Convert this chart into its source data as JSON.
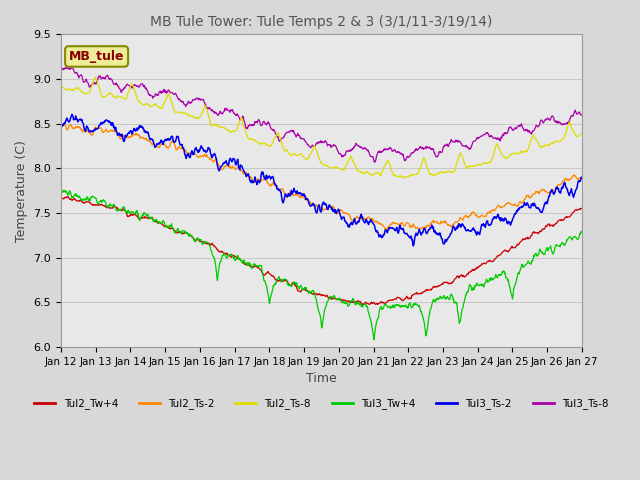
{
  "title": "MB Tule Tower: Tule Temps 2 & 3 (3/1/11-3/19/14)",
  "xlabel": "Time",
  "ylabel": "Temperature (C)",
  "ylim": [
    6.0,
    9.5
  ],
  "yticks": [
    6.0,
    6.5,
    7.0,
    7.5,
    8.0,
    8.5,
    9.0,
    9.5
  ],
  "xtick_labels": [
    "Jan 12",
    "Jan 13",
    "Jan 14",
    "Jan 15",
    "Jan 16",
    "Jan 17",
    "Jan 18",
    "Jan 19",
    "Jan 20",
    "Jan 21",
    "Jan 22",
    "Jan 23",
    "Jan 24",
    "Jan 25",
    "Jan 26",
    "Jan 27"
  ],
  "legend_label": "MB_tule",
  "series_colors": {
    "Tul2_Tw+4": "#cc0000",
    "Tul2_Ts-2": "#ff8800",
    "Tul2_Ts-8": "#dddd00",
    "Tul3_Tw+4": "#00cc00",
    "Tul3_Ts-2": "#0000ee",
    "Tul3_Ts-8": "#aa00aa"
  },
  "background_color": "#d8d8d8",
  "inner_bg_color": "#e8e8e8"
}
